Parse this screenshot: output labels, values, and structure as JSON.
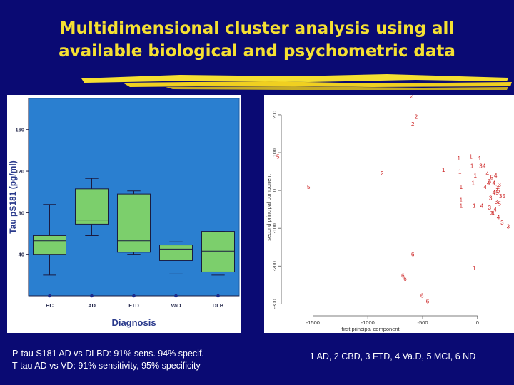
{
  "slide": {
    "title_line1": "Multidimensional cluster analysis using all",
    "title_line2": "available biological and psychometric data",
    "title_color": "#f5e032",
    "background": "#0a0a73"
  },
  "caption_left": {
    "line1": "P-tau S181 AD vs DLBD: 91% sens. 94% specif.",
    "line2": "T-tau AD vs VD: 91% sensitivity, 95% specificity"
  },
  "caption_right": {
    "text": "1 AD, 2 CBD, 3 FTD, 4 Va.D, 5 MCI, 6 ND"
  },
  "chart_data": [
    {
      "type": "boxplot",
      "xlabel": "Diagnosis",
      "ylabel": "Tau pS181 (pg/ml)",
      "ylim": [
        0,
        190
      ],
      "yticks": [
        40,
        80,
        120,
        160
      ],
      "categories": [
        "HC",
        "AD",
        "FTD",
        "VaD",
        "DLB"
      ],
      "boxes": [
        {
          "min": 20,
          "q1": 40,
          "median": 53,
          "q3": 58,
          "max": 88
        },
        {
          "min": 58,
          "q1": 69,
          "median": 73,
          "q3": 103,
          "max": 113
        },
        {
          "min": 40,
          "q1": 42,
          "median": 53,
          "q3": 98,
          "max": 101
        },
        {
          "min": 21,
          "q1": 34,
          "median": 45,
          "q3": 49,
          "max": 52
        },
        {
          "min": 20,
          "q1": 23,
          "median": 43,
          "q3": 62,
          "max": 62
        }
      ],
      "box_color": "#7ccf6c",
      "plot_background": "#2a7fd0",
      "grid": false
    },
    {
      "type": "scatter",
      "xlabel": "first principal component",
      "ylabel": "second principal component",
      "xlim": [
        -1750,
        320
      ],
      "ylim": [
        -320,
        230
      ],
      "xticks": [
        -1500,
        -1000,
        -500,
        0
      ],
      "yticks": [
        -300,
        -200,
        -100,
        0,
        100,
        200
      ],
      "point_color": "#cc2222",
      "points": [
        {
          "label": "2",
          "x": -600,
          "y": 250
        },
        {
          "label": "2",
          "x": -560,
          "y": 195
        },
        {
          "label": "2",
          "x": -590,
          "y": 175
        },
        {
          "label": "2",
          "x": -870,
          "y": 45
        },
        {
          "label": "5",
          "x": -1820,
          "y": 90
        },
        {
          "label": "5",
          "x": -1540,
          "y": 10
        },
        {
          "label": "6",
          "x": -590,
          "y": -168
        },
        {
          "label": "6",
          "x": -680,
          "y": -225
        },
        {
          "label": "6",
          "x": -660,
          "y": -233
        },
        {
          "label": "6",
          "x": -505,
          "y": -278
        },
        {
          "label": "6",
          "x": -455,
          "y": -293
        },
        {
          "label": "1",
          "x": -30,
          "y": -205
        },
        {
          "label": "1",
          "x": -170,
          "y": 85
        },
        {
          "label": "1",
          "x": -60,
          "y": 90
        },
        {
          "label": "1",
          "x": -50,
          "y": 65
        },
        {
          "label": "1",
          "x": 20,
          "y": 85
        },
        {
          "label": "1",
          "x": -310,
          "y": 55
        },
        {
          "label": "1",
          "x": -160,
          "y": 50
        },
        {
          "label": "1",
          "x": -20,
          "y": 40
        },
        {
          "label": "1",
          "x": -150,
          "y": 10
        },
        {
          "label": "1",
          "x": -150,
          "y": -25
        },
        {
          "label": "1",
          "x": -150,
          "y": -40
        },
        {
          "label": "1",
          "x": -30,
          "y": -40
        },
        {
          "label": "1",
          "x": -40,
          "y": 20
        },
        {
          "label": "3",
          "x": 30,
          "y": 65
        },
        {
          "label": "3",
          "x": 110,
          "y": 25
        },
        {
          "label": "3",
          "x": 180,
          "y": 10
        },
        {
          "label": "3",
          "x": 200,
          "y": 15
        },
        {
          "label": "3",
          "x": 120,
          "y": -20
        },
        {
          "label": "3",
          "x": 170,
          "y": -30
        },
        {
          "label": "3",
          "x": 110,
          "y": -45
        },
        {
          "label": "3",
          "x": 210,
          "y": -15
        },
        {
          "label": "3",
          "x": 280,
          "y": -95
        },
        {
          "label": "3",
          "x": 225,
          "y": -85
        },
        {
          "label": "3",
          "x": 130,
          "y": -60
        },
        {
          "label": "4",
          "x": 60,
          "y": 65
        },
        {
          "label": "4",
          "x": 90,
          "y": 45
        },
        {
          "label": "4",
          "x": 100,
          "y": 20
        },
        {
          "label": "4",
          "x": 70,
          "y": 10
        },
        {
          "label": "4",
          "x": 150,
          "y": 20
        },
        {
          "label": "4",
          "x": 40,
          "y": -40
        },
        {
          "label": "4",
          "x": 150,
          "y": -5
        },
        {
          "label": "4",
          "x": 160,
          "y": -50
        },
        {
          "label": "4",
          "x": 140,
          "y": -60
        },
        {
          "label": "4",
          "x": 190,
          "y": -70
        },
        {
          "label": "4",
          "x": 165,
          "y": 40
        },
        {
          "label": "5",
          "x": 190,
          "y": 0
        },
        {
          "label": "5",
          "x": 240,
          "y": -15
        },
        {
          "label": "5",
          "x": 200,
          "y": -35
        },
        {
          "label": "5",
          "x": 130,
          "y": 35
        },
        {
          "label": "5",
          "x": 180,
          "y": -5
        }
      ]
    }
  ]
}
